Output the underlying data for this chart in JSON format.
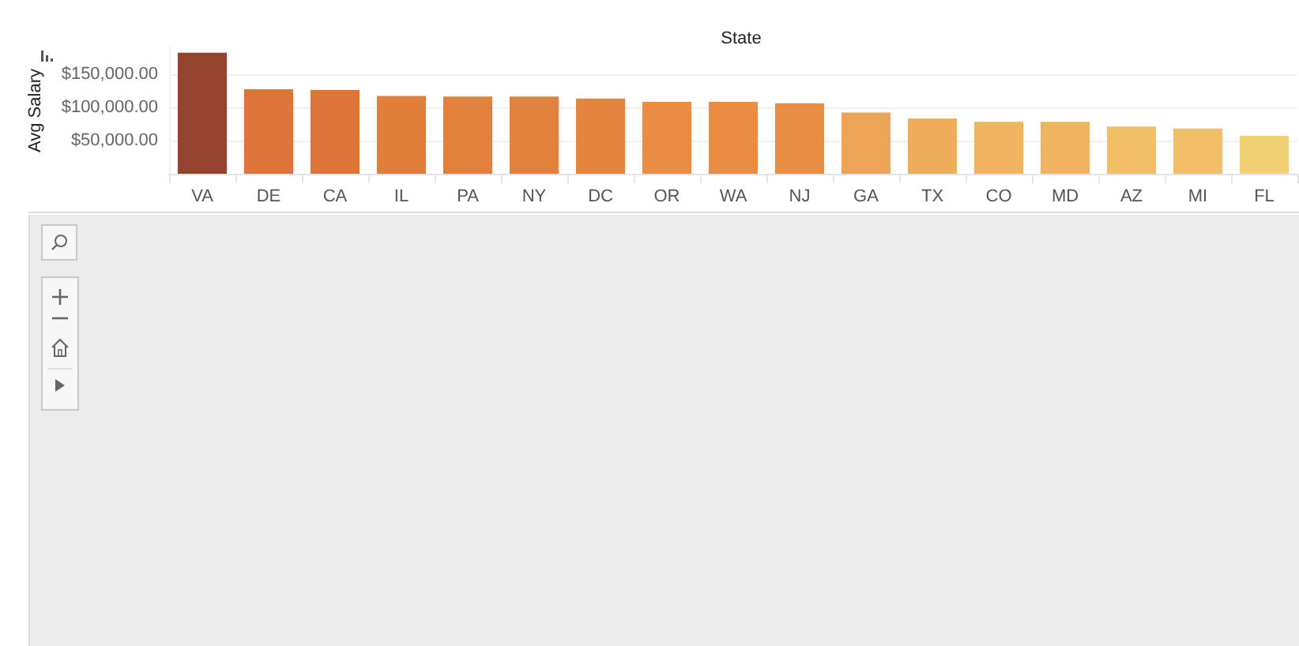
{
  "chart_data": {
    "type": "bar",
    "xlabel": "State",
    "ylabel": "Avg Salary",
    "categories": [
      "VA",
      "DE",
      "CA",
      "IL",
      "PA",
      "NY",
      "DC",
      "OR",
      "WA",
      "NJ",
      "GA",
      "TX",
      "CO",
      "MD",
      "AZ",
      "MI",
      "FL"
    ],
    "values": [
      182000,
      127000,
      126000,
      117000,
      116000,
      116000,
      113000,
      108000,
      108000,
      106000,
      92000,
      83000,
      78000,
      78000,
      71000,
      68000,
      57000
    ],
    "colors": [
      "#93432e",
      "#dc7537",
      "#dc7537",
      "#e07e3a",
      "#e2813c",
      "#e2813c",
      "#e4843d",
      "#e88d41",
      "#e88d41",
      "#e88e42",
      "#eda657",
      "#efad5a",
      "#f0b35e",
      "#f0b35e",
      "#f1bf66",
      "#f1bf66",
      "#f0d070"
    ],
    "ylim": [
      0,
      190000
    ],
    "yticks": [
      {
        "value": 50000,
        "label": "$50,000.00"
      },
      {
        "value": 100000,
        "label": "$100,000.00"
      },
      {
        "value": 150000,
        "label": "$150,000.00"
      }
    ],
    "grid": "y"
  }
}
